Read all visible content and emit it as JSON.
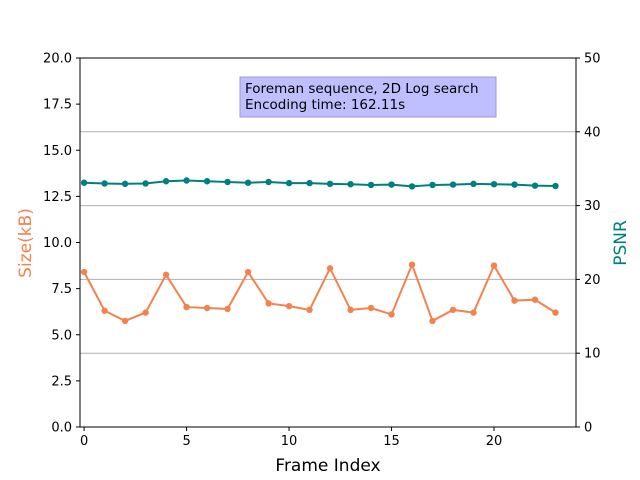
{
  "chart_data": {
    "type": "line",
    "xlabel": "Frame Index",
    "ylabel_left": "Size(kB)",
    "ylabel_right": "PSNR",
    "annotation": [
      "Foreman sequence, 2D Log search",
      "Encoding time: 162.11s"
    ],
    "x": [
      0,
      1,
      2,
      3,
      4,
      5,
      6,
      7,
      8,
      9,
      10,
      11,
      12,
      13,
      14,
      15,
      16,
      17,
      18,
      19,
      20,
      21,
      22,
      23
    ],
    "xlim": [
      -0.2,
      24.0
    ],
    "xticks": [
      0,
      5,
      10,
      15,
      20
    ],
    "ylim_left": [
      0,
      20
    ],
    "yticks_left": [
      0.0,
      2.5,
      5.0,
      7.5,
      10.0,
      12.5,
      15.0,
      17.5,
      20.0
    ],
    "ylim_right": [
      0,
      50
    ],
    "yticks_right": [
      0,
      10,
      20,
      30,
      40,
      50
    ],
    "grid": "horizontal at right-axis ticks",
    "series": [
      {
        "axis": "left",
        "color": "#f4824e",
        "values": [
          8.4,
          6.3,
          5.75,
          6.2,
          8.25,
          6.5,
          6.45,
          6.4,
          8.4,
          6.7,
          6.55,
          6.35,
          8.6,
          6.35,
          6.45,
          6.1,
          8.8,
          5.75,
          6.35,
          6.2,
          8.75,
          6.85,
          6.9,
          6.2
        ]
      },
      {
        "axis": "right",
        "color": "#007f7f",
        "values": [
          33.1,
          33.0,
          32.95,
          33.0,
          33.3,
          33.4,
          33.3,
          33.2,
          33.1,
          33.2,
          33.05,
          33.05,
          32.95,
          32.9,
          32.8,
          32.85,
          32.6,
          32.8,
          32.85,
          32.95,
          32.9,
          32.85,
          32.7,
          32.65
        ]
      }
    ]
  }
}
